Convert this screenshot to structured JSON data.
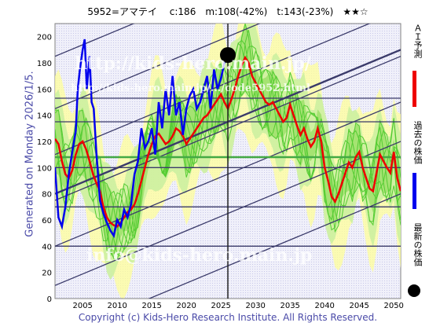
{
  "header": {
    "title": "5952=アマテイ　 c:186　m:108(-42%)　t:143(-23%)　★★☆"
  },
  "side_label": "Generated on Monday 2026/1/5.",
  "footer": "Copyright (c) Kids-Hero Research Institute. All Rights Reserved.",
  "watermarks": {
    "url": "http://kids-hero.main.jp/",
    "page": "http://kids-hero.main.jp/.../code5952.html",
    "email": "info@kids-hero.main.jp"
  },
  "legend": {
    "forecast": "ＡＩ予測",
    "past": "過去の株価",
    "latest": "最新の株価"
  },
  "colors": {
    "past": "#0000ee",
    "forecast": "#ee0000",
    "latest": "#000000",
    "band_green": "#55cc33",
    "band_light": "#ccf0a0",
    "band_yellow": "#ffff99",
    "trend_line": "#3a3a6a",
    "background": "#e8e8f4"
  },
  "chart_data": {
    "type": "line",
    "xlim": [
      2001,
      2051
    ],
    "ylim": [
      0,
      210
    ],
    "x_ticks": [
      2005,
      2010,
      2015,
      2020,
      2025,
      2030,
      2035,
      2040,
      2045,
      2050
    ],
    "y_ticks": [
      0,
      20,
      40,
      60,
      80,
      100,
      120,
      140,
      160,
      180,
      200
    ],
    "grid": false,
    "legend_position": "right",
    "series": [
      {
        "name": "過去の株価",
        "x": [
          2001.0,
          2001.5,
          2002.0,
          2002.5,
          2003.0,
          2003.5,
          2004.0,
          2004.3,
          2004.6,
          2005.0,
          2005.3,
          2005.6,
          2006.0,
          2006.3,
          2006.6,
          2007.0,
          2007.5,
          2008.0,
          2008.5,
          2009.0,
          2009.5,
          2010.0,
          2010.5,
          2011.0,
          2011.5,
          2012.0,
          2012.5,
          2013.0,
          2013.5,
          2014.0,
          2014.5,
          2015.0,
          2015.5,
          2016.0,
          2016.5,
          2017.0,
          2017.5,
          2018.0,
          2018.5,
          2019.0,
          2019.5,
          2020.0,
          2020.5,
          2021.0,
          2021.5,
          2022.0,
          2022.5,
          2023.0,
          2023.5,
          2024.0,
          2024.5,
          2025.0,
          2025.5,
          2026.0
        ],
        "values": [
          100,
          62,
          55,
          70,
          95,
          112,
          128,
          160,
          175,
          190,
          198,
          160,
          185,
          150,
          145,
          110,
          75,
          65,
          58,
          52,
          48,
          60,
          55,
          68,
          62,
          72,
          95,
          105,
          130,
          115,
          120,
          130,
          110,
          150,
          130,
          160,
          140,
          170,
          140,
          150,
          125,
          145,
          155,
          160,
          145,
          150,
          160,
          170,
          145,
          175,
          160,
          168,
          180,
          186
        ]
      },
      {
        "name": "ＡＩ予測",
        "x": [
          2001.0,
          2001.5,
          2002.0,
          2002.5,
          2003.0,
          2003.5,
          2004.0,
          2004.5,
          2005.0,
          2005.5,
          2006.0,
          2006.5,
          2007.0,
          2007.5,
          2008.0,
          2008.5,
          2009.0,
          2009.5,
          2010.0,
          2010.5,
          2011.0,
          2011.5,
          2012.0,
          2012.5,
          2013.0,
          2013.5,
          2014.0,
          2014.5,
          2015.0,
          2015.5,
          2016.0,
          2016.5,
          2017.0,
          2017.5,
          2018.0,
          2018.5,
          2019.0,
          2019.5,
          2020.0,
          2020.5,
          2021.0,
          2021.5,
          2022.0,
          2022.5,
          2023.0,
          2023.5,
          2024.0,
          2024.5,
          2025.0,
          2025.5,
          2026.0,
          2026.5,
          2027.0,
          2027.5,
          2028.0,
          2028.5,
          2029.0,
          2029.5,
          2030.0,
          2030.5,
          2031.0,
          2031.5,
          2032.0,
          2032.5,
          2033.0,
          2033.5,
          2034.0,
          2034.5,
          2035.0,
          2035.5,
          2036.0,
          2036.5,
          2037.0,
          2037.5,
          2038.0,
          2038.5,
          2039.0,
          2039.5,
          2040.0,
          2040.5,
          2041.0,
          2041.5,
          2042.0,
          2042.5,
          2043.0,
          2043.5,
          2044.0,
          2044.5,
          2045.0,
          2045.5,
          2046.0,
          2046.5,
          2047.0,
          2047.5,
          2048.0,
          2048.5,
          2049.0,
          2049.5,
          2050.0,
          2050.5,
          2051.0
        ],
        "values": [
          122,
          118,
          105,
          95,
          92,
          98,
          110,
          118,
          120,
          114,
          105,
          95,
          88,
          82,
          70,
          62,
          58,
          56,
          55,
          58,
          62,
          66,
          68,
          72,
          80,
          90,
          100,
          110,
          118,
          124,
          126,
          122,
          118,
          120,
          124,
          130,
          128,
          124,
          118,
          122,
          126,
          130,
          134,
          138,
          140,
          144,
          148,
          152,
          156,
          150,
          145,
          152,
          160,
          170,
          178,
          184,
          180,
          170,
          165,
          160,
          155,
          150,
          148,
          150,
          145,
          140,
          135,
          138,
          148,
          140,
          132,
          125,
          130,
          122,
          116,
          120,
          130,
          120,
          100,
          90,
          78,
          74,
          80,
          88,
          96,
          104,
          100,
          108,
          112,
          100,
          92,
          84,
          82,
          96,
          110,
          105,
          100,
          96,
          112,
          92,
          82
        ]
      },
      {
        "name": "最新の株価",
        "x": [
          2026.0
        ],
        "values": [
          186
        ]
      }
    ],
    "horizontal_lines": [
      40,
      70,
      100,
      135,
      153
    ],
    "marker_year": 2026,
    "marker_value": 186
  }
}
